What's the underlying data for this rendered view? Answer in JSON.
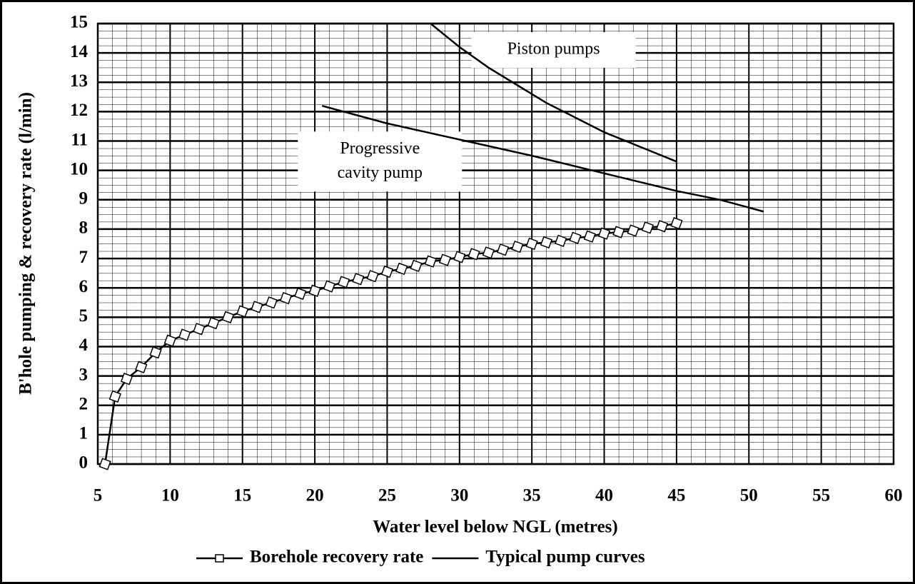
{
  "chart_data": {
    "type": "line",
    "xlabel": "Water level below NGL (metres)",
    "ylabel": "B'hole pumping & recovery rate (l/min)",
    "xlim": [
      5,
      60
    ],
    "xticks": [
      5,
      10,
      15,
      20,
      25,
      30,
      35,
      40,
      45,
      50,
      55,
      60
    ],
    "ylim": [
      0,
      15
    ],
    "yticks": [
      0,
      1,
      2,
      3,
      4,
      5,
      6,
      7,
      8,
      9,
      10,
      11,
      12,
      13,
      14,
      15
    ],
    "grid": true,
    "series": [
      {
        "name": "Borehole recovery rate",
        "color": "#000000",
        "marker": "square",
        "x": [
          5.5,
          6.2,
          7,
          8,
          9,
          10,
          11,
          12,
          13,
          14,
          15,
          16,
          17,
          18,
          19,
          20,
          21,
          22,
          23,
          24,
          25,
          26,
          27,
          28,
          29,
          30,
          31,
          32,
          33,
          34,
          35,
          36,
          37,
          38,
          39,
          40,
          41,
          42,
          43,
          44,
          45
        ],
        "values": [
          0,
          2.3,
          2.9,
          3.3,
          3.8,
          4.2,
          4.4,
          4.6,
          4.8,
          5.0,
          5.2,
          5.35,
          5.5,
          5.65,
          5.8,
          5.9,
          6.05,
          6.2,
          6.3,
          6.4,
          6.55,
          6.65,
          6.75,
          6.9,
          6.95,
          7.05,
          7.15,
          7.2,
          7.3,
          7.4,
          7.5,
          7.55,
          7.6,
          7.7,
          7.75,
          7.85,
          7.9,
          7.95,
          8.05,
          8.1,
          8.2
        ]
      },
      {
        "name": "Typical pump curves",
        "color": "#000000",
        "x": [
          28,
          30,
          32,
          34,
          36,
          38,
          40,
          42,
          45,
          null,
          20.5,
          25,
          30,
          35,
          40,
          45,
          48,
          51
        ],
        "values": [
          15,
          14.2,
          13.5,
          12.9,
          12.3,
          11.8,
          11.3,
          10.9,
          10.3,
          null,
          12.2,
          11.6,
          11.05,
          10.5,
          9.9,
          9.3,
          9.0,
          8.6
        ]
      }
    ],
    "annotations": [
      {
        "lines": [
          "Piston pumps"
        ],
        "x": 36.5,
        "y": 14.1
      },
      {
        "lines": [
          "Progressive",
          "cavity pump"
        ],
        "x": 24.5,
        "y": 10.3
      }
    ]
  }
}
